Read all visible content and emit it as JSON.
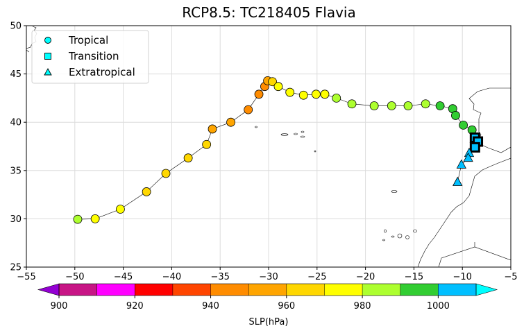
{
  "chart_data": {
    "type": "scatter",
    "title": "RCP8.5: TC218405 Flavia",
    "xlim": [
      -55,
      -5
    ],
    "ylim": [
      25,
      50
    ],
    "x_ticks": [
      "−55",
      "−50",
      "−45",
      "−40",
      "−35",
      "−30",
      "−25",
      "−20",
      "−15",
      "−10",
      "−5"
    ],
    "y_ticks": [
      "25",
      "30",
      "35",
      "40",
      "45",
      "50"
    ],
    "grid": true,
    "legend": {
      "placement": "top-left",
      "entries": [
        {
          "label": "Tropical",
          "marker": "circle"
        },
        {
          "label": "Transition",
          "marker": "square"
        },
        {
          "label": "Extratropical",
          "marker": "triangle"
        }
      ]
    },
    "colorbar": {
      "label": "SLP(hPa)",
      "min": 895,
      "max": 1015,
      "tick_values": [
        900,
        920,
        940,
        960,
        980,
        1000
      ],
      "tick_labels": [
        "900",
        "920",
        "940",
        "960",
        "980",
        "1000"
      ],
      "bins": [
        {
          "from": 900,
          "to": 910,
          "color": "#c71585"
        },
        {
          "from": 910,
          "to": 920,
          "color": "#ff00ff"
        },
        {
          "from": 920,
          "to": 930,
          "color": "#ff0000"
        },
        {
          "from": 930,
          "to": 940,
          "color": "#ff4500"
        },
        {
          "from": 940,
          "to": 950,
          "color": "#ff8c00"
        },
        {
          "from": 950,
          "to": 960,
          "color": "#ffa500"
        },
        {
          "from": 960,
          "to": 970,
          "color": "#ffd700"
        },
        {
          "from": 970,
          "to": 980,
          "color": "#ffff00"
        },
        {
          "from": 980,
          "to": 990,
          "color": "#adff2f"
        },
        {
          "from": 990,
          "to": 1000,
          "color": "#32cd32"
        },
        {
          "from": 1000,
          "to": 1010,
          "color": "#00bfff"
        }
      ],
      "under_color": "#9400d3",
      "over_color": "#00ffff"
    },
    "track": [
      {
        "lon": -49.7,
        "lat": 29.95,
        "slp": 985,
        "phase": "tropical"
      },
      {
        "lon": -47.9,
        "lat": 30.0,
        "slp": 975,
        "phase": "tropical"
      },
      {
        "lon": -45.3,
        "lat": 31.0,
        "slp": 972,
        "phase": "tropical"
      },
      {
        "lon": -42.6,
        "lat": 32.8,
        "slp": 965,
        "phase": "tropical"
      },
      {
        "lon": -40.6,
        "lat": 34.7,
        "slp": 963,
        "phase": "tropical"
      },
      {
        "lon": -38.3,
        "lat": 36.3,
        "slp": 964,
        "phase": "tropical"
      },
      {
        "lon": -36.4,
        "lat": 37.7,
        "slp": 962,
        "phase": "tropical"
      },
      {
        "lon": -35.8,
        "lat": 39.3,
        "slp": 955,
        "phase": "tropical"
      },
      {
        "lon": -33.9,
        "lat": 40.0,
        "slp": 950,
        "phase": "tropical"
      },
      {
        "lon": -32.1,
        "lat": 41.3,
        "slp": 948,
        "phase": "tropical"
      },
      {
        "lon": -31.0,
        "lat": 42.9,
        "slp": 945,
        "phase": "tropical"
      },
      {
        "lon": -30.4,
        "lat": 43.7,
        "slp": 944,
        "phase": "tropical"
      },
      {
        "lon": -30.1,
        "lat": 44.3,
        "slp": 950,
        "phase": "tropical"
      },
      {
        "lon": -29.6,
        "lat": 44.2,
        "slp": 965,
        "phase": "tropical"
      },
      {
        "lon": -29.0,
        "lat": 43.7,
        "slp": 970,
        "phase": "tropical"
      },
      {
        "lon": -27.8,
        "lat": 43.1,
        "slp": 973,
        "phase": "tropical"
      },
      {
        "lon": -26.4,
        "lat": 42.8,
        "slp": 975,
        "phase": "tropical"
      },
      {
        "lon": -25.1,
        "lat": 42.9,
        "slp": 977,
        "phase": "tropical"
      },
      {
        "lon": -24.2,
        "lat": 42.9,
        "slp": 978,
        "phase": "tropical"
      },
      {
        "lon": -23.0,
        "lat": 42.5,
        "slp": 982,
        "phase": "tropical"
      },
      {
        "lon": -21.4,
        "lat": 41.9,
        "slp": 984,
        "phase": "tropical"
      },
      {
        "lon": -19.1,
        "lat": 41.7,
        "slp": 985,
        "phase": "tropical"
      },
      {
        "lon": -17.3,
        "lat": 41.7,
        "slp": 985,
        "phase": "tropical"
      },
      {
        "lon": -15.6,
        "lat": 41.7,
        "slp": 985,
        "phase": "tropical"
      },
      {
        "lon": -13.8,
        "lat": 41.9,
        "slp": 988,
        "phase": "tropical"
      },
      {
        "lon": -12.3,
        "lat": 41.7,
        "slp": 990,
        "phase": "tropical"
      },
      {
        "lon": -11.0,
        "lat": 41.4,
        "slp": 993,
        "phase": "tropical"
      },
      {
        "lon": -10.7,
        "lat": 40.7,
        "slp": 994,
        "phase": "tropical"
      },
      {
        "lon": -9.9,
        "lat": 39.7,
        "slp": 995,
        "phase": "tropical"
      },
      {
        "lon": -9.0,
        "lat": 39.2,
        "slp": 996,
        "phase": "tropical"
      },
      {
        "lon": -8.7,
        "lat": 38.4,
        "slp": 1002,
        "phase": "transition"
      },
      {
        "lon": -8.4,
        "lat": 38.0,
        "slp": 1003,
        "phase": "transition"
      },
      {
        "lon": -8.7,
        "lat": 37.4,
        "slp": 1003,
        "phase": "transition"
      },
      {
        "lon": -9.3,
        "lat": 36.8,
        "slp": 1004,
        "phase": "extratropical"
      },
      {
        "lon": -9.4,
        "lat": 36.3,
        "slp": 1005,
        "phase": "extratropical"
      },
      {
        "lon": -10.1,
        "lat": 35.6,
        "slp": 1006,
        "phase": "extratropical"
      },
      {
        "lon": -10.5,
        "lat": 33.8,
        "slp": 1008,
        "phase": "extratropical"
      }
    ]
  }
}
